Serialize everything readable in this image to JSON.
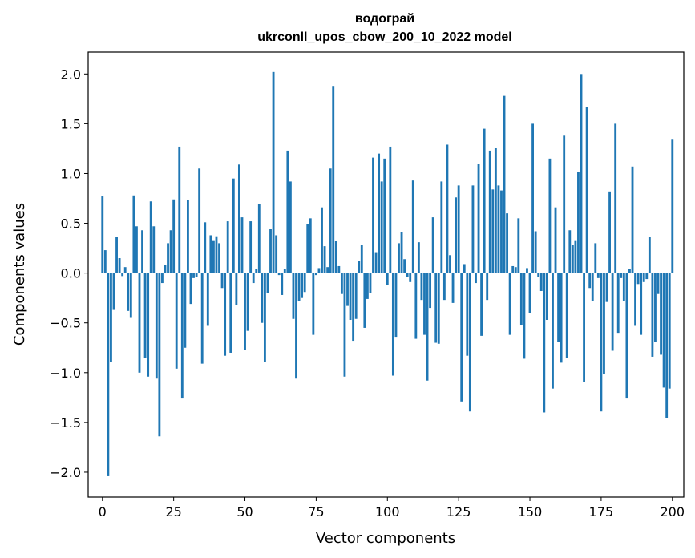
{
  "chart_data": {
    "type": "bar",
    "title": "водограй",
    "subtitle": "ukrconll_upos_cbow_200_10_2022 model",
    "xlabel": "Vector components",
    "ylabel": "Components values",
    "xlim": [
      -5,
      204
    ],
    "ylim": [
      -2.25,
      2.22
    ],
    "xticks": [
      0,
      25,
      50,
      75,
      100,
      125,
      150,
      175,
      200
    ],
    "yticks": [
      -2.0,
      -1.5,
      -1.0,
      -0.5,
      0.0,
      0.5,
      1.0,
      1.5,
      2.0
    ],
    "grid": false,
    "bar_color": "#1f77b4",
    "values": [
      0.77,
      0.23,
      -2.04,
      -0.89,
      -0.37,
      0.36,
      0.15,
      -0.03,
      0.06,
      -0.38,
      -0.45,
      0.78,
      0.47,
      -1.0,
      0.43,
      -0.85,
      -1.04,
      0.72,
      0.47,
      -1.06,
      -1.64,
      -0.1,
      0.08,
      0.3,
      0.43,
      0.74,
      -0.96,
      1.27,
      -1.26,
      -0.75,
      0.73,
      -0.31,
      -0.05,
      -0.04,
      1.05,
      -0.91,
      0.51,
      -0.53,
      0.38,
      0.33,
      0.37,
      0.3,
      -0.15,
      -0.83,
      0.52,
      -0.8,
      0.95,
      -0.32,
      1.09,
      0.56,
      -0.77,
      -0.58,
      0.52,
      -0.1,
      0.04,
      0.69,
      -0.5,
      -0.89,
      -0.2,
      0.44,
      2.02,
      0.38,
      -0.02,
      -0.22,
      0.04,
      1.23,
      0.92,
      -0.46,
      -1.06,
      -0.28,
      -0.25,
      -0.19,
      0.49,
      0.55,
      -0.62,
      -0.02,
      0.05,
      0.66,
      0.27,
      0.06,
      1.05,
      1.88,
      0.32,
      0.07,
      -0.21,
      -1.04,
      -0.33,
      -0.47,
      -0.68,
      -0.46,
      0.12,
      0.28,
      -0.55,
      -0.26,
      -0.2,
      1.16,
      0.21,
      1.2,
      0.92,
      1.15,
      -0.12,
      1.27,
      -1.03,
      -0.64,
      0.3,
      0.41,
      0.14,
      -0.04,
      -0.09,
      0.93,
      -0.66,
      0.31,
      -0.27,
      -0.62,
      -1.08,
      -0.35,
      0.56,
      -0.7,
      -0.71,
      0.92,
      -0.27,
      1.29,
      0.18,
      -0.3,
      0.76,
      0.88,
      -1.29,
      0.09,
      -0.83,
      -1.39,
      0.88,
      -0.1,
      1.1,
      -0.63,
      1.45,
      -0.27,
      1.23,
      0.84,
      1.26,
      0.88,
      0.83,
      1.78,
      0.6,
      -0.62,
      0.07,
      0.06,
      0.55,
      -0.52,
      -0.86,
      0.05,
      -0.4,
      1.5,
      0.42,
      -0.04,
      -0.18,
      -1.4,
      -0.47,
      1.15,
      -1.16,
      0.66,
      -0.69,
      -0.9,
      1.38,
      -0.85,
      0.43,
      0.28,
      0.33,
      1.02,
      2.0,
      -1.09,
      1.67,
      -0.15,
      -0.28,
      0.3,
      -0.05,
      -1.39,
      -1.01,
      -0.29,
      0.82,
      -0.78,
      1.5,
      -0.6,
      -0.05,
      -0.28,
      -1.26,
      0.04,
      1.07,
      -0.53,
      -0.11,
      -0.62,
      -0.09,
      -0.06,
      0.36,
      -0.84,
      -0.69,
      -0.21,
      -0.82,
      -1.15,
      -1.46,
      -1.16,
      1.34
    ]
  }
}
